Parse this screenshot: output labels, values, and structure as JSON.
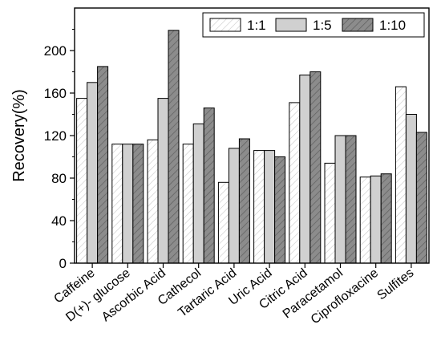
{
  "chart_data": {
    "type": "bar",
    "title": "",
    "xlabel": "",
    "ylabel": "Recovery(%)",
    "ylim": [
      0,
      240
    ],
    "yticks": [
      0,
      40,
      80,
      120,
      160,
      200
    ],
    "grid": false,
    "legend_position": "top-right",
    "categories": [
      "Caffeine",
      "D(+)- glucose",
      "Ascorbic Acid",
      "Cathecol",
      "Tartaric Acid",
      "Uric Acid",
      "Citric Acid",
      "Paracetamol",
      "Ciprofloxacine",
      "Sulfites"
    ],
    "series": [
      {
        "name": "1:1",
        "values": [
          155,
          112,
          116,
          112,
          76,
          106,
          151,
          94,
          81,
          166
        ],
        "fill": "#ffffff",
        "pattern": "light-hatch"
      },
      {
        "name": "1:5",
        "values": [
          170,
          112,
          155,
          131,
          108,
          106,
          177,
          120,
          82,
          140
        ],
        "fill": "#d0d0d0",
        "pattern": "solid"
      },
      {
        "name": "1:10",
        "values": [
          185,
          112,
          219,
          146,
          117,
          100,
          180,
          120,
          84,
          123
        ],
        "fill": "#8c8c8c",
        "pattern": "dark-hatch"
      }
    ]
  }
}
